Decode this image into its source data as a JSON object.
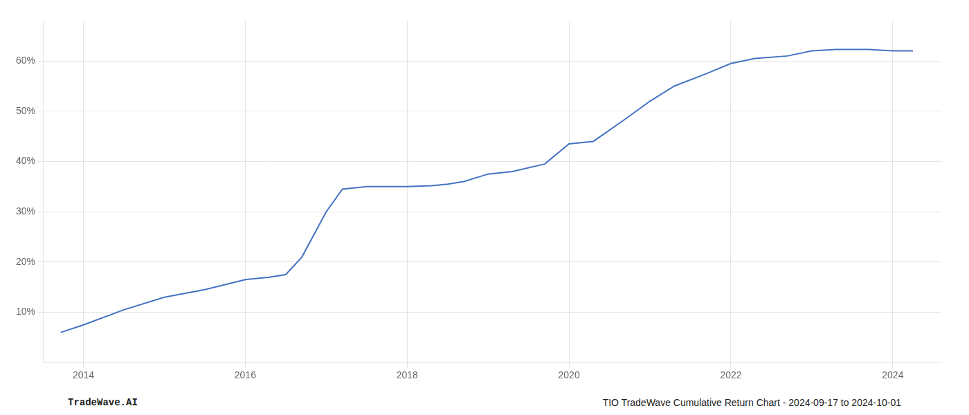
{
  "chart_data": {
    "type": "line",
    "x": [
      2013.72,
      2014.0,
      2014.5,
      2015.0,
      2015.5,
      2016.0,
      2016.3,
      2016.5,
      2016.7,
      2017.0,
      2017.2,
      2017.5,
      2017.7,
      2018.0,
      2018.3,
      2018.5,
      2018.7,
      2019.0,
      2019.3,
      2019.7,
      2020.0,
      2020.3,
      2020.7,
      2021.0,
      2021.3,
      2021.7,
      2022.0,
      2022.3,
      2022.7,
      2023.0,
      2023.3,
      2023.7,
      2024.0,
      2024.25
    ],
    "values": [
      6.0,
      7.5,
      10.5,
      13.0,
      14.5,
      16.5,
      17.0,
      17.5,
      21.0,
      30.0,
      34.5,
      35.0,
      35.0,
      35.0,
      35.2,
      35.5,
      36.0,
      37.5,
      38.0,
      39.5,
      43.5,
      44.0,
      48.5,
      52.0,
      55.0,
      57.5,
      59.5,
      60.5,
      61.0,
      62.0,
      62.3,
      62.3,
      62.0,
      62.0
    ],
    "color": "#4472c4",
    "xlim": [
      2013.5,
      2024.6
    ],
    "ylim": [
      0,
      68
    ],
    "xticks": [
      2014,
      2016,
      2018,
      2020,
      2022,
      2024
    ],
    "yticks": [
      {
        "value": 10,
        "label": "10%"
      },
      {
        "value": 20,
        "label": "20%"
      },
      {
        "value": 30,
        "label": "30%"
      },
      {
        "value": 40,
        "label": "40%"
      },
      {
        "value": 50,
        "label": "50%"
      },
      {
        "value": 60,
        "label": "60%"
      }
    ],
    "grid": true,
    "annotations": [
      "TradeWave.AI",
      "TIO TradeWave Cumulative Return Chart - 2024-09-17 to 2024-10-01"
    ]
  }
}
